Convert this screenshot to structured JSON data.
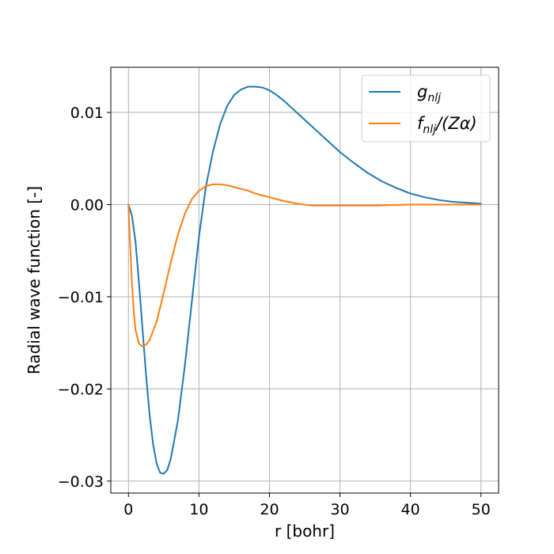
{
  "chart_data": {
    "type": "line",
    "title": "",
    "xlabel": "r [bohr]",
    "ylabel": "Radial wave function [-]",
    "xlim": [
      -2.5,
      52.5
    ],
    "ylim": [
      -0.0313,
      0.0149
    ],
    "xticks": [
      0,
      10,
      20,
      30,
      40,
      50
    ],
    "xtick_labels": [
      "0",
      "10",
      "20",
      "30",
      "40",
      "50"
    ],
    "yticks": [
      -0.03,
      -0.02,
      -0.01,
      0.0,
      0.01
    ],
    "ytick_labels": [
      "−0.03",
      "−0.02",
      "−0.01",
      "0.00",
      "0.01"
    ],
    "grid": true,
    "legend_position": "top-right",
    "series": [
      {
        "name": "g_nlj",
        "legend_main": "g",
        "legend_sub": "nlj",
        "legend_tail": "",
        "color": "#1f77b4",
        "x": [
          0,
          0.5,
          1,
          1.5,
          2,
          2.5,
          3,
          3.5,
          4,
          4.5,
          5,
          5.5,
          6,
          7,
          8,
          9,
          10,
          11,
          12,
          13,
          14,
          15,
          16,
          17,
          18,
          19,
          20,
          21,
          22,
          23,
          24,
          25,
          26,
          28,
          30,
          32,
          34,
          36,
          38,
          40,
          42,
          44,
          46,
          48,
          50
        ],
        "y": [
          0.0,
          -0.0012,
          -0.004,
          -0.0085,
          -0.0135,
          -0.0185,
          -0.0228,
          -0.026,
          -0.0281,
          -0.0291,
          -0.0292,
          -0.0288,
          -0.0276,
          -0.0235,
          -0.0175,
          -0.0105,
          -0.0035,
          0.002,
          0.0058,
          0.0087,
          0.0107,
          0.0119,
          0.0125,
          0.0128,
          0.0128,
          0.0127,
          0.0124,
          0.0119,
          0.0113,
          0.0106,
          0.0099,
          0.0092,
          0.0085,
          0.0071,
          0.0057,
          0.0045,
          0.0034,
          0.0025,
          0.0018,
          0.0012,
          0.0008,
          0.0005,
          0.0003,
          0.0002,
          0.0001
        ]
      },
      {
        "name": "f_nlj/(Zα)",
        "legend_main": "f",
        "legend_sub": "nlj",
        "legend_tail": "/(Zα)",
        "color": "#ff7f0e",
        "x": [
          0,
          0.25,
          0.5,
          0.75,
          1,
          1.5,
          2,
          2.5,
          3,
          4,
          5,
          6,
          7,
          8,
          9,
          10,
          11,
          12,
          13,
          14,
          15,
          16,
          17,
          18,
          19,
          20,
          22,
          24,
          26,
          28,
          30,
          32,
          35,
          40,
          45,
          50
        ],
        "y": [
          0.0,
          -0.0045,
          -0.0085,
          -0.0115,
          -0.0136,
          -0.0151,
          -0.0154,
          -0.0152,
          -0.0147,
          -0.0127,
          -0.0096,
          -0.0063,
          -0.0033,
          -0.001,
          0.0006,
          0.0015,
          0.002,
          0.0022,
          0.0022,
          0.0021,
          0.0019,
          0.0017,
          0.0015,
          0.0012,
          0.001,
          0.0008,
          0.0004,
          0.0001,
          -0.0001,
          -0.0001,
          -0.0001,
          -0.0001,
          -0.0001,
          0.0,
          0.0,
          0.0
        ]
      }
    ]
  }
}
